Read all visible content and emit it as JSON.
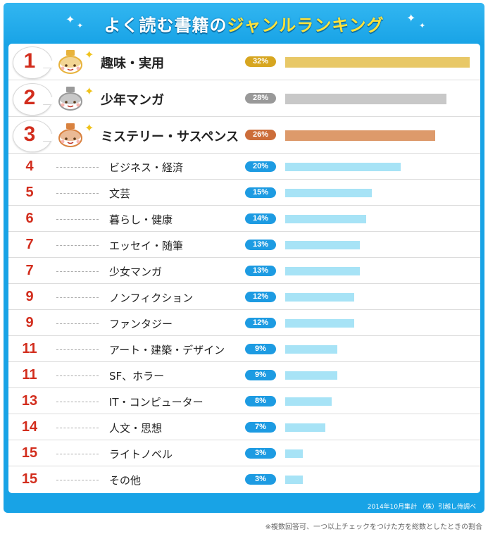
{
  "header": {
    "title_lead": "よく読む書籍の",
    "title_accent": "ジャンルランキング"
  },
  "colors": {
    "frame": "#18a3e6",
    "rank_text": "#d22d1d",
    "gold": "#e8c867",
    "silver": "#c8c8c8",
    "bronze": "#dd9a6b",
    "regular_bar": "#a7e3f6",
    "regular_pill": "#1d9be2",
    "gold_pill": "#d7a620",
    "silver_pill": "#999999",
    "bronze_pill": "#cc6d3a"
  },
  "chart_data": {
    "type": "bar",
    "orientation": "horizontal",
    "value_unit": "%",
    "rows": [
      {
        "rank": "1",
        "category": "趣味・実用",
        "value": 32,
        "label": "32%",
        "tier": "gold",
        "icon": "gold-medal-face-icon"
      },
      {
        "rank": "2",
        "category": "少年マンガ",
        "value": 28,
        "label": "28%",
        "tier": "silver",
        "icon": "silver-medal-face-icon"
      },
      {
        "rank": "3",
        "category": "ミステリー・サスペンス",
        "value": 26,
        "label": "26%",
        "tier": "bronze",
        "icon": "bronze-medal-face-icon"
      },
      {
        "rank": "4",
        "category": "ビジネス・経済",
        "value": 20,
        "label": "20%",
        "tier": "regular"
      },
      {
        "rank": "5",
        "category": "文芸",
        "value": 15,
        "label": "15%",
        "tier": "regular"
      },
      {
        "rank": "6",
        "category": "暮らし・健康",
        "value": 14,
        "label": "14%",
        "tier": "regular"
      },
      {
        "rank": "7",
        "category": "エッセイ・随筆",
        "value": 13,
        "label": "13%",
        "tier": "regular"
      },
      {
        "rank": "7",
        "category": "少女マンガ",
        "value": 13,
        "label": "13%",
        "tier": "regular"
      },
      {
        "rank": "9",
        "category": "ノンフィクション",
        "value": 12,
        "label": "12%",
        "tier": "regular"
      },
      {
        "rank": "9",
        "category": "ファンタジー",
        "value": 12,
        "label": "12%",
        "tier": "regular"
      },
      {
        "rank": "11",
        "category": "アート・建築・デザイン",
        "value": 9,
        "label": "9%",
        "tier": "regular"
      },
      {
        "rank": "11",
        "category": "SF、ホラー",
        "value": 9,
        "label": "9%",
        "tier": "regular"
      },
      {
        "rank": "13",
        "category": "IT・コンピューター",
        "value": 8,
        "label": "8%",
        "tier": "regular"
      },
      {
        "rank": "14",
        "category": "人文・思想",
        "value": 7,
        "label": "7%",
        "tier": "regular"
      },
      {
        "rank": "15",
        "category": "ライトノベル",
        "value": 3,
        "label": "3%",
        "tier": "regular"
      },
      {
        "rank": "15",
        "category": "その他",
        "value": 3,
        "label": "3%",
        "tier": "regular"
      }
    ],
    "xlim": [
      0,
      32
    ]
  },
  "footer": {
    "source": "2014年10月集計 （株）引越し侍調べ",
    "note": "※複数回答可、一つ以上チェックをつけた方を総数としたときの割合"
  }
}
